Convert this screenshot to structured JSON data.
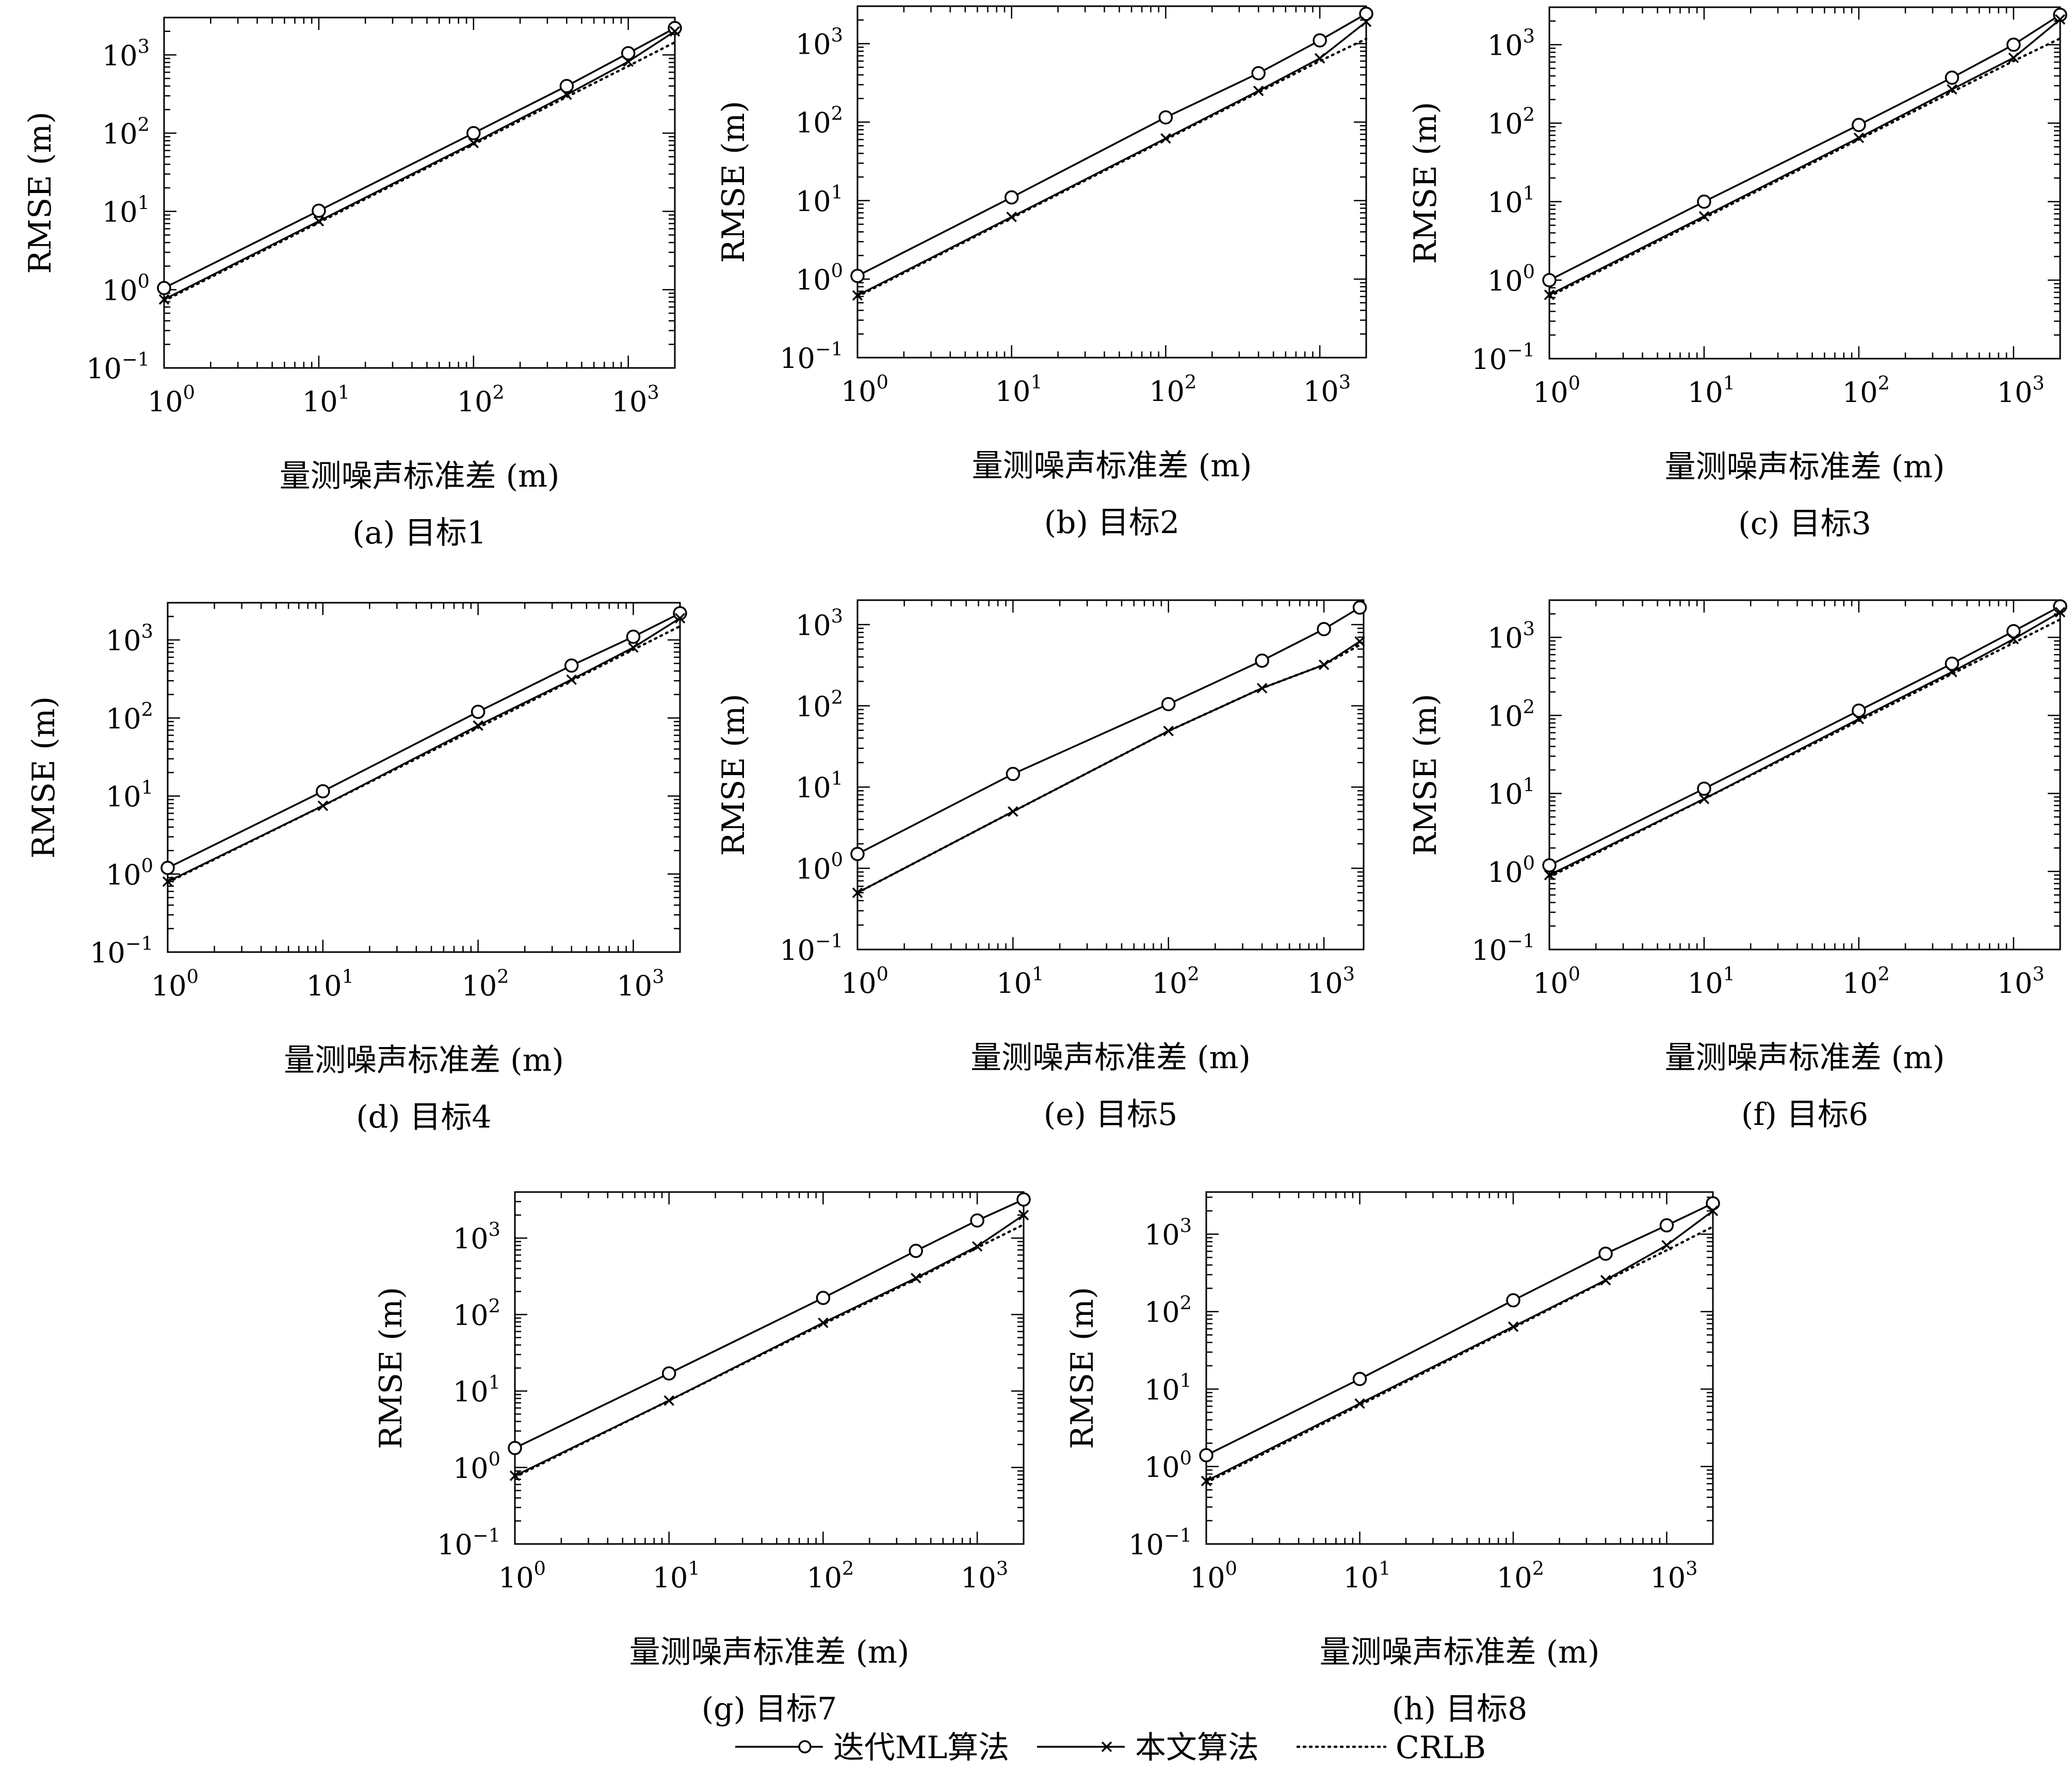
{
  "ticks": {
    "y": [
      {
        "base": "10",
        "exp": "−1",
        "v": 0.1
      },
      {
        "base": "10",
        "exp": "0",
        "v": 1
      },
      {
        "base": "10",
        "exp": "1",
        "v": 10
      },
      {
        "base": "10",
        "exp": "2",
        "v": 100
      },
      {
        "base": "10",
        "exp": "3",
        "v": 1000
      }
    ],
    "x": [
      {
        "base": "10",
        "exp": "0",
        "v": 1
      },
      {
        "base": "10",
        "exp": "1",
        "v": 10
      },
      {
        "base": "10",
        "exp": "2",
        "v": 100
      },
      {
        "base": "10",
        "exp": "3",
        "v": 1000
      }
    ]
  },
  "legend": {
    "entries": [
      {
        "label": "迭代ML算法",
        "marker": "circle",
        "style": "solid"
      },
      {
        "label": "本文算法",
        "marker": "x",
        "style": "solid"
      },
      {
        "label": "CRLB",
        "marker": "none",
        "style": "dotted"
      }
    ],
    "position": "bottom-center"
  },
  "colors": {
    "line": "#000000",
    "background": "#ffffff"
  },
  "chart_data": [
    {
      "type": "line",
      "caption": "(a) 目标1",
      "xlabel": "量测噪声标准差 (m)",
      "ylabel": "RMSE (m)",
      "xscale": "log",
      "yscale": "log",
      "xlim": [
        1,
        2000
      ],
      "ylim": [
        0.1,
        3000
      ],
      "series": [
        {
          "name": "迭代ML算法",
          "x": [
            1,
            10,
            100,
            400,
            1000,
            2000
          ],
          "y": [
            1.05,
            10.2,
            100,
            400,
            1050,
            2200
          ]
        },
        {
          "name": "本文算法",
          "x": [
            1,
            10,
            100,
            400,
            1000,
            2000
          ],
          "y": [
            0.75,
            7.5,
            75,
            310,
            820,
            2000
          ]
        },
        {
          "name": "CRLB",
          "x": [
            1,
            10,
            100,
            400,
            1000,
            2000
          ],
          "y": [
            0.72,
            7.2,
            72,
            290,
            720,
            1450
          ]
        }
      ]
    },
    {
      "type": "line",
      "caption": "(b) 目标2",
      "xlabel": "量测噪声标准差 (m)",
      "ylabel": "RMSE (m)",
      "xscale": "log",
      "yscale": "log",
      "xlim": [
        1,
        2000
      ],
      "ylim": [
        0.1,
        3000
      ],
      "series": [
        {
          "name": "迭代ML算法",
          "x": [
            1,
            10,
            100,
            400,
            1000,
            2000
          ],
          "y": [
            1.1,
            11,
            115,
            420,
            1100,
            2400
          ]
        },
        {
          "name": "本文算法",
          "x": [
            1,
            10,
            100,
            400,
            1000,
            2000
          ],
          "y": [
            0.62,
            6.2,
            62,
            250,
            650,
            1900
          ]
        },
        {
          "name": "CRLB",
          "x": [
            1,
            10,
            100,
            400,
            1000,
            2000
          ],
          "y": [
            0.6,
            6.0,
            60,
            240,
            600,
            1150
          ]
        }
      ]
    },
    {
      "type": "line",
      "caption": "(c) 目标3",
      "xlabel": "量测噪声标准差 (m)",
      "ylabel": "RMSE (m)",
      "xscale": "log",
      "yscale": "log",
      "xlim": [
        1,
        2000
      ],
      "ylim": [
        0.1,
        3000
      ],
      "series": [
        {
          "name": "迭代ML算法",
          "x": [
            1,
            10,
            100,
            400,
            1000,
            2000
          ],
          "y": [
            1.0,
            10,
            95,
            380,
            1000,
            2400
          ]
        },
        {
          "name": "本文算法",
          "x": [
            1,
            10,
            100,
            400,
            1000,
            2000
          ],
          "y": [
            0.65,
            6.5,
            65,
            270,
            680,
            2100
          ]
        },
        {
          "name": "CRLB",
          "x": [
            1,
            10,
            100,
            400,
            1000,
            2000
          ],
          "y": [
            0.62,
            6.2,
            62,
            250,
            620,
            1200
          ]
        }
      ]
    },
    {
      "type": "line",
      "caption": "(d) 目标4",
      "xlabel": "量测噪声标准差 (m)",
      "ylabel": "RMSE (m)",
      "xscale": "log",
      "yscale": "log",
      "xlim": [
        1,
        2000
      ],
      "ylim": [
        0.1,
        3000
      ],
      "series": [
        {
          "name": "迭代ML算法",
          "x": [
            1,
            10,
            100,
            400,
            1000,
            2000
          ],
          "y": [
            1.2,
            11.5,
            120,
            470,
            1100,
            2200
          ]
        },
        {
          "name": "本文算法",
          "x": [
            1,
            10,
            100,
            400,
            1000,
            2000
          ],
          "y": [
            0.8,
            7.5,
            80,
            310,
            800,
            1900
          ]
        },
        {
          "name": "CRLB",
          "x": [
            1,
            10,
            100,
            400,
            1000,
            2000
          ],
          "y": [
            0.78,
            7.5,
            75,
            300,
            750,
            1500
          ]
        }
      ]
    },
    {
      "type": "line",
      "caption": "(e) 目标5",
      "xlabel": "量测噪声标准差 (m)",
      "ylabel": "RMSE (m)",
      "xscale": "log",
      "yscale": "log",
      "xlim": [
        1,
        1800
      ],
      "ylim": [
        0.1,
        2000
      ],
      "series": [
        {
          "name": "迭代ML算法",
          "x": [
            1,
            10,
            100,
            400,
            1000,
            1700
          ],
          "y": [
            1.5,
            14.5,
            105,
            360,
            880,
            1620
          ]
        },
        {
          "name": "本文算法",
          "x": [
            1,
            10,
            100,
            400,
            1000,
            1700
          ],
          "y": [
            0.5,
            5,
            49,
            165,
            320,
            620
          ]
        },
        {
          "name": "CRLB",
          "x": [
            1,
            10,
            100,
            400,
            1000,
            1700
          ],
          "y": [
            0.5,
            5,
            49,
            165,
            320,
            560
          ]
        }
      ]
    },
    {
      "type": "line",
      "caption": "(f) 目标6",
      "xlabel": "量测噪声标准差 (m)",
      "ylabel": "RMSE (m)",
      "xscale": "log",
      "yscale": "log",
      "xlim": [
        1,
        2000
      ],
      "ylim": [
        0.1,
        3000
      ],
      "series": [
        {
          "name": "迭代ML算法",
          "x": [
            1,
            10,
            100,
            400,
            1000,
            2000
          ],
          "y": [
            1.2,
            11.5,
            115,
            460,
            1200,
            2500
          ]
        },
        {
          "name": "本文算法",
          "x": [
            1,
            10,
            100,
            400,
            1000,
            2000
          ],
          "y": [
            0.9,
            8.5,
            90,
            360,
            950,
            2100
          ]
        },
        {
          "name": "CRLB",
          "x": [
            1,
            10,
            100,
            400,
            1000,
            2000
          ],
          "y": [
            0.85,
            8.5,
            85,
            340,
            850,
            1700
          ]
        }
      ]
    },
    {
      "type": "line",
      "caption": "(g) 目标7",
      "xlabel": "量测噪声标准差 (m)",
      "ylabel": "RMSE (m)",
      "xscale": "log",
      "yscale": "log",
      "xlim": [
        1,
        2000
      ],
      "ylim": [
        0.1,
        4000
      ],
      "series": [
        {
          "name": "迭代ML算法",
          "x": [
            1,
            10,
            100,
            400,
            1000,
            2000
          ],
          "y": [
            1.8,
            17,
            165,
            680,
            1700,
            3200
          ]
        },
        {
          "name": "本文算法",
          "x": [
            1,
            10,
            100,
            400,
            1000,
            2000
          ],
          "y": [
            0.78,
            7.5,
            78,
            300,
            780,
            2000
          ]
        },
        {
          "name": "CRLB",
          "x": [
            1,
            10,
            100,
            400,
            1000,
            2000
          ],
          "y": [
            0.75,
            7.5,
            75,
            290,
            750,
            1500
          ]
        }
      ]
    },
    {
      "type": "line",
      "caption": "(h) 目标8",
      "xlabel": "量测噪声标准差 (m)",
      "ylabel": "RMSE (m)",
      "xscale": "log",
      "yscale": "log",
      "xlim": [
        1,
        2000
      ],
      "ylim": [
        0.1,
        3500
      ],
      "series": [
        {
          "name": "迭代ML算法",
          "x": [
            1,
            10,
            100,
            400,
            1000,
            2000
          ],
          "y": [
            1.4,
            13.5,
            140,
            560,
            1300,
            2500
          ]
        },
        {
          "name": "本文算法",
          "x": [
            1,
            10,
            100,
            400,
            1000,
            2000
          ],
          "y": [
            0.65,
            6.5,
            64,
            255,
            720,
            2000
          ]
        },
        {
          "name": "CRLB",
          "x": [
            1,
            10,
            100,
            400,
            1000,
            2000
          ],
          "y": [
            0.62,
            6.2,
            62,
            250,
            620,
            1250
          ]
        }
      ]
    }
  ]
}
